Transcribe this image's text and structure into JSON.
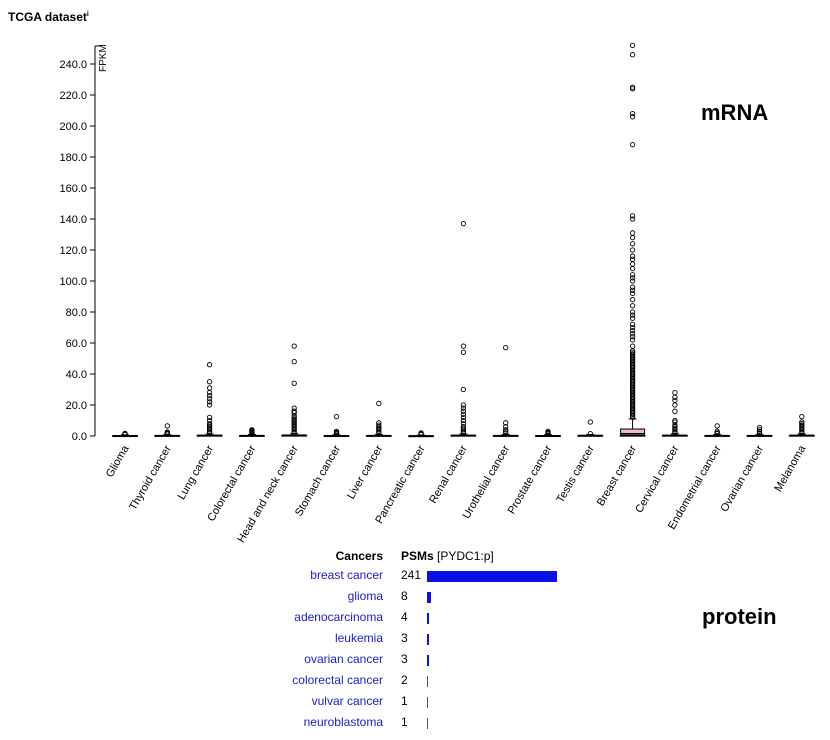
{
  "dataset_title": "TCGA dataset",
  "info_mark": "i",
  "mrna_label": "mRNA",
  "protein_label": "protein",
  "chart_data": {
    "type": "box",
    "ylabel": "FPKM",
    "ylim": [
      0,
      250
    ],
    "yticks": [
      "0.0",
      "20.0",
      "40.0",
      "60.0",
      "80.0",
      "100.0",
      "120.0",
      "140.0",
      "160.0",
      "180.0",
      "200.0",
      "220.0",
      "240.0"
    ],
    "categories": [
      "Glioma",
      "Thyroid cancer",
      "Lung cancer",
      "Colorectal cancer",
      "Head and neck cancer",
      "Stomach cancer",
      "Liver cancer",
      "Pancreatic cancer",
      "Renal cancer",
      "Urothelial cancer",
      "Prostate cancer",
      "Testis cancer",
      "Breast cancer",
      "Cervical cancer",
      "Endometrial cancer",
      "Ovarian cancer",
      "Melanoma"
    ],
    "boxes": [
      {
        "q1": 0,
        "median": 0.1,
        "q3": 0.3,
        "whisker_high": 0.8,
        "outliers": [
          1.0,
          1.2,
          1.4,
          1.7
        ]
      },
      {
        "q1": 0,
        "median": 0.1,
        "q3": 0.4,
        "whisker_high": 0.9,
        "outliers": [
          1.2,
          1.5,
          2.0,
          2.6,
          6.5
        ]
      },
      {
        "q1": 0,
        "median": 0.2,
        "q3": 0.6,
        "whisker_high": 1.2,
        "outliers": [
          2,
          3,
          4,
          5,
          6,
          7,
          8,
          10,
          12,
          20,
          22,
          24,
          26,
          28,
          31,
          35,
          46
        ]
      },
      {
        "q1": 0,
        "median": 0.1,
        "q3": 0.4,
        "whisker_high": 1.0,
        "outliers": [
          1.5,
          2.0,
          2.5,
          3.0,
          3.5,
          4.0
        ]
      },
      {
        "q1": 0,
        "median": 0.2,
        "q3": 0.7,
        "whisker_high": 1.5,
        "outliers": [
          2,
          3,
          4,
          5,
          6,
          7,
          8,
          9,
          10,
          11,
          12,
          13,
          15,
          16,
          18,
          34,
          48,
          58
        ]
      },
      {
        "q1": 0,
        "median": 0.1,
        "q3": 0.3,
        "whisker_high": 0.8,
        "outliers": [
          1.2,
          1.8,
          2.5,
          3.0,
          12.5
        ]
      },
      {
        "q1": 0,
        "median": 0.1,
        "q3": 0.4,
        "whisker_high": 1.0,
        "outliers": [
          2,
          3,
          4,
          5,
          6,
          7,
          8.5,
          21
        ]
      },
      {
        "q1": 0,
        "median": 0.1,
        "q3": 0.2,
        "whisker_high": 0.6,
        "outliers": [
          1.0,
          1.5,
          2.0
        ]
      },
      {
        "q1": 0,
        "median": 0.2,
        "q3": 0.6,
        "whisker_high": 1.3,
        "outliers": [
          2,
          3,
          4,
          5,
          6,
          8,
          10,
          12,
          14,
          16,
          18,
          20,
          30,
          54,
          58,
          137
        ]
      },
      {
        "q1": 0,
        "median": 0.1,
        "q3": 0.4,
        "whisker_high": 1.0,
        "outliers": [
          2,
          3,
          4,
          6,
          8.5,
          57
        ]
      },
      {
        "q1": 0,
        "median": 0.1,
        "q3": 0.3,
        "whisker_high": 0.8,
        "outliers": [
          1.2,
          1.8,
          2.4,
          3.0
        ]
      },
      {
        "q1": 0,
        "median": 0.2,
        "q3": 0.5,
        "whisker_high": 1.0,
        "outliers": [
          1.5,
          9
        ]
      },
      {
        "q1": 0.5,
        "median": 1.5,
        "q3": 4.5,
        "whisker_high": 11,
        "outliers": [
          12,
          13,
          14,
          15,
          16,
          17,
          18,
          19,
          20,
          21,
          22,
          23,
          24,
          25,
          26,
          27,
          28,
          29,
          30,
          31,
          32,
          33,
          34,
          35,
          36,
          37,
          38,
          39,
          40,
          41,
          42,
          43,
          44,
          45,
          46,
          47,
          48,
          49,
          50,
          51,
          52,
          53,
          54,
          55,
          58,
          62,
          64,
          66,
          68,
          70,
          72,
          76,
          78,
          80,
          84,
          88,
          92,
          94,
          96,
          100,
          102,
          104,
          108,
          111,
          114,
          116,
          120,
          124,
          128,
          131,
          140,
          142,
          188,
          206,
          208,
          224,
          225,
          246,
          252
        ]
      },
      {
        "q1": 0,
        "median": 0.2,
        "q3": 0.6,
        "whisker_high": 1.4,
        "outliers": [
          2,
          3,
          4,
          5,
          6,
          7,
          9,
          10,
          16,
          20,
          23,
          25,
          28
        ]
      },
      {
        "q1": 0,
        "median": 0.1,
        "q3": 0.4,
        "whisker_high": 1.0,
        "outliers": [
          1.5,
          2,
          3,
          6.5
        ]
      },
      {
        "q1": 0,
        "median": 0.1,
        "q3": 0.4,
        "whisker_high": 1.0,
        "outliers": [
          1.5,
          2,
          3,
          4,
          5.5
        ]
      },
      {
        "q1": 0,
        "median": 0.2,
        "q3": 0.6,
        "whisker_high": 1.3,
        "outliers": [
          2,
          3,
          4,
          5,
          6,
          7,
          8,
          9,
          12.5
        ]
      }
    ]
  },
  "protein": {
    "header_cancers": "Cancers",
    "header_psms": "PSMs",
    "header_suffix": "[PYDC1:p]",
    "max": 241,
    "rows": [
      {
        "name": "breast cancer",
        "psms": "241",
        "value": 241
      },
      {
        "name": "glioma",
        "psms": "8",
        "value": 8
      },
      {
        "name": "adenocarcinoma",
        "psms": "4",
        "value": 4
      },
      {
        "name": "leukemia",
        "psms": "3",
        "value": 3
      },
      {
        "name": "ovarian cancer",
        "psms": "3",
        "value": 3
      },
      {
        "name": "colorectal cancer",
        "psms": "2",
        "value": 2
      },
      {
        "name": "vulvar cancer",
        "psms": "1",
        "value": 1
      },
      {
        "name": "neuroblastoma",
        "psms": "1",
        "value": 1
      }
    ]
  },
  "colors": {
    "box_fill": "#f4b6c8",
    "bar": "#0a10e6",
    "link": "#1b1bcc"
  }
}
